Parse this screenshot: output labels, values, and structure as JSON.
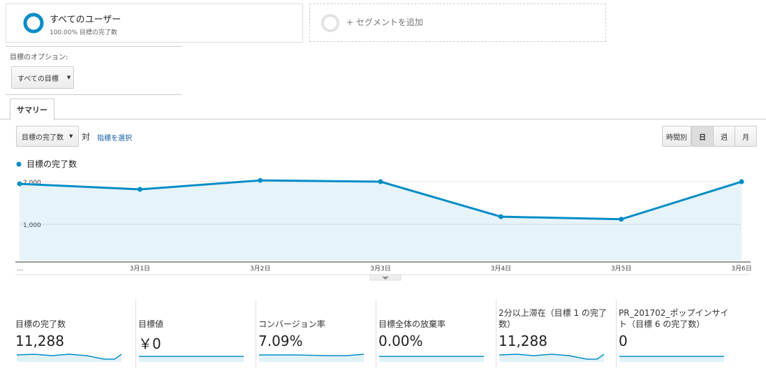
{
  "segment": {
    "name": "すべてのユーザー",
    "subtitle": "100.00% 目標の完了数"
  },
  "add_segment": "+ セグメントを追加",
  "goal_options_label": "目標のオプション:",
  "goal_dropdown": "すべての目標",
  "tab": "サマリー",
  "metric_dropdown": "目標の完了数",
  "vs": "対",
  "select_metric": "指標を選択",
  "granularity": [
    "時間別",
    "日",
    "週",
    "月"
  ],
  "chart_data": {
    "type": "line",
    "categories": [
      "…",
      "3月1日",
      "3月2日",
      "3月3日",
      "3月4日",
      "3月5日",
      "3月6日"
    ],
    "series": [
      {
        "name": "目標の完了数",
        "color": "#058dc7",
        "values": [
          1950,
          1820,
          2030,
          2000,
          1180,
          1120,
          2000
        ]
      }
    ],
    "ylim": [
      150,
      2115
    ],
    "yticks": [
      {
        "value": 1000,
        "label": "1,000"
      },
      {
        "value": 2000,
        "label": "2,000"
      }
    ],
    "grid": true
  },
  "scorecards": [
    {
      "label": "目標の完了数",
      "value": "11,288"
    },
    {
      "label": "目標値",
      "value": "￥0"
    },
    {
      "label": "コンバージョン率",
      "value": "7.09%"
    },
    {
      "label": "目標全体の放棄率",
      "value": "0.00%"
    },
    {
      "label": "2分以上滞在（目標 1 の完了数）",
      "value": "11,288"
    },
    {
      "label": "PR_201702_ポップインサイト（目標 6 の完了数）",
      "value": "0"
    }
  ]
}
